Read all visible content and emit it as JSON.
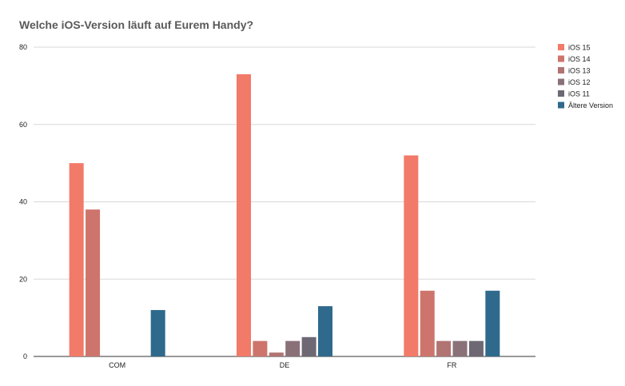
{
  "chart_data": {
    "type": "bar",
    "title": "Welche iOS-Version läuft auf Eurem Handy?",
    "categories": [
      "COM",
      "DE",
      "FR"
    ],
    "series": [
      {
        "name": "iOS 15",
        "color": "#f27a68",
        "values": [
          50,
          73,
          52
        ]
      },
      {
        "name": "iOS 14",
        "color": "#cd756c",
        "values": [
          38,
          4,
          17
        ]
      },
      {
        "name": "iOS 13",
        "color": "#b27373",
        "values": [
          0,
          1,
          4
        ]
      },
      {
        "name": "iOS 12",
        "color": "#8a7178",
        "values": [
          0,
          4,
          4
        ]
      },
      {
        "name": "iOS 11",
        "color": "#6d6873",
        "values": [
          0,
          5,
          4
        ]
      },
      {
        "name": "Ältere Version",
        "color": "#2f6a8c",
        "values": [
          12,
          13,
          17
        ]
      }
    ],
    "ylim": [
      0,
      80
    ],
    "yticks": [
      "0",
      "20",
      "40",
      "60",
      "80"
    ],
    "grid": true,
    "legend_position": "right"
  }
}
